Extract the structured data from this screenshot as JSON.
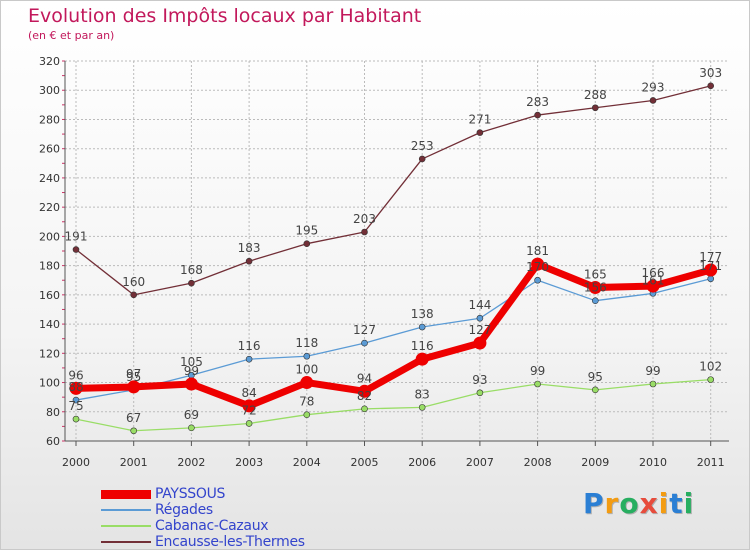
{
  "title": "Evolution des Impôts locaux par Habitant",
  "subtitle": "(en € et par an)",
  "brand": {
    "letters": [
      "P",
      "r",
      "o",
      "x",
      "i",
      "t",
      "i"
    ],
    "colors": [
      "#2b7fd4",
      "#f39c12",
      "#27ae60",
      "#e74c3c",
      "#f39c12",
      "#2b7fd4",
      "#27ae60"
    ]
  },
  "chart_data": {
    "type": "line",
    "x": [
      "2000",
      "2001",
      "2002",
      "2003",
      "2004",
      "2005",
      "2006",
      "2007",
      "2008",
      "2009",
      "2010",
      "2011"
    ],
    "ylim": [
      60,
      320
    ],
    "yticks": [
      "60",
      "80",
      "100",
      "120",
      "140",
      "160",
      "180",
      "200",
      "220",
      "240",
      "260",
      "280",
      "300",
      "320"
    ],
    "grid": true,
    "legend_position": "bottom-left",
    "series": [
      {
        "name": "Encausse-les-Thermes",
        "color": "#722f37",
        "values": [
          191,
          160,
          168,
          183,
          195,
          203,
          253,
          271,
          283,
          288,
          293,
          303
        ],
        "labels": [
          "191",
          "160",
          "168",
          "183",
          "195",
          "203",
          "253",
          "271",
          "283",
          "288",
          "293",
          "303"
        ],
        "highlight": false
      },
      {
        "name": "Régades",
        "color": "#5b9bd5",
        "values": [
          88,
          95,
          105,
          116,
          118,
          127,
          138,
          144,
          170,
          156,
          161,
          171
        ],
        "labels": [
          "88",
          "95",
          "105",
          "116",
          "118",
          "127",
          "138",
          "144",
          "170",
          "156",
          "161",
          "171"
        ],
        "highlight": false
      },
      {
        "name": "Cabanac-Cazaux",
        "color": "#99dd66",
        "values": [
          75,
          67,
          69,
          72,
          78,
          82,
          83,
          93,
          99,
          95,
          99,
          102
        ],
        "labels": [
          "75",
          "67",
          "69",
          "72",
          "78",
          "82",
          "83",
          "93",
          "99",
          "95",
          "99",
          "102"
        ],
        "highlight": false
      },
      {
        "name": "PAYSSOUS",
        "color": "#ee0000",
        "values": [
          96,
          97,
          99,
          84,
          100,
          94,
          116,
          127,
          181,
          165,
          166,
          177
        ],
        "labels": [
          "96",
          "97",
          "99",
          "84",
          "100",
          "94",
          "116",
          "127",
          "181",
          "165",
          "166",
          "177"
        ],
        "highlight": true
      }
    ],
    "legend": [
      "PAYSSOUS",
      "Régades",
      "Cabanac-Cazaux",
      "Encausse-les-Thermes"
    ]
  }
}
